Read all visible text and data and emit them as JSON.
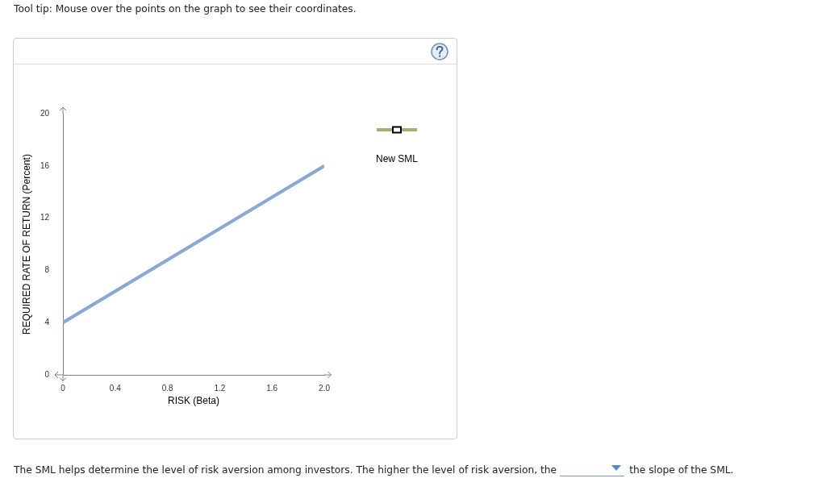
{
  "chart_data": {
    "type": "line",
    "xlabel": "RISK (Beta)",
    "ylabel": "REQUIRED RATE OF RETURN (Percent)",
    "x": [
      0,
      2
    ],
    "xlim": [
      0,
      2
    ],
    "xticks": [
      0,
      0.4,
      0.8,
      1.2,
      1.6,
      {
        "value": 2,
        "label": "2.0"
      }
    ],
    "ylim": [
      0,
      20
    ],
    "yticks": [
      0,
      4,
      8,
      12,
      16,
      20
    ],
    "series": [
      {
        "color": "#88a9d3",
        "values": [
          4,
          16
        ],
        "marker": "none"
      }
    ],
    "annotations": [
      "Tool tip: Mouse over the points on the graph to see their coordinates.",
      "New SML",
      "The SML helps determine the level of risk aversion among investors. The higher the level of risk aversion, the",
      "the slope of the SML."
    ]
  }
}
